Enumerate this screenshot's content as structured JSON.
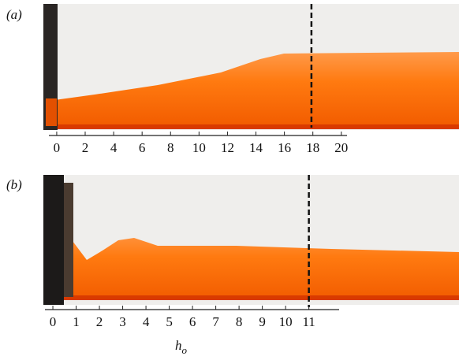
{
  "panels": [
    {
      "label": "(a)",
      "xlim": [
        -0.55,
        20.4
      ],
      "xticks": [
        0,
        2,
        4,
        6,
        8,
        10,
        12,
        14,
        16,
        18,
        20
      ],
      "dashed_line": 17.9
    },
    {
      "label": "(b)",
      "xlim": [
        -0.34,
        12.3
      ],
      "xticks": [
        0,
        1,
        2,
        3,
        4,
        5,
        6,
        7,
        8,
        9,
        10,
        11
      ],
      "dashed_line": 11.0
    }
  ],
  "xlabel": {
    "base": "h",
    "sub": "o"
  }
}
